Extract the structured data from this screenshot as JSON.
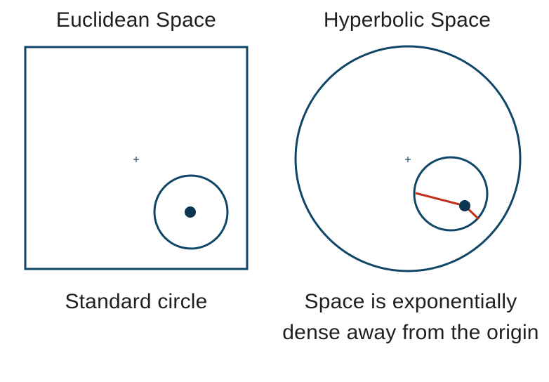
{
  "panels": {
    "euclidean": {
      "title": "Euclidean Space",
      "caption": "Standard circle"
    },
    "hyperbolic": {
      "title": "Hyperbolic Space",
      "caption": "Space is exponentially dense away from the origin"
    }
  },
  "colors": {
    "outline": "#0f4566",
    "point": "#0c3553",
    "radius_line": "#c0311a",
    "text": "#1f1f1f"
  },
  "icons": {
    "origin_marker": "plus-icon"
  }
}
